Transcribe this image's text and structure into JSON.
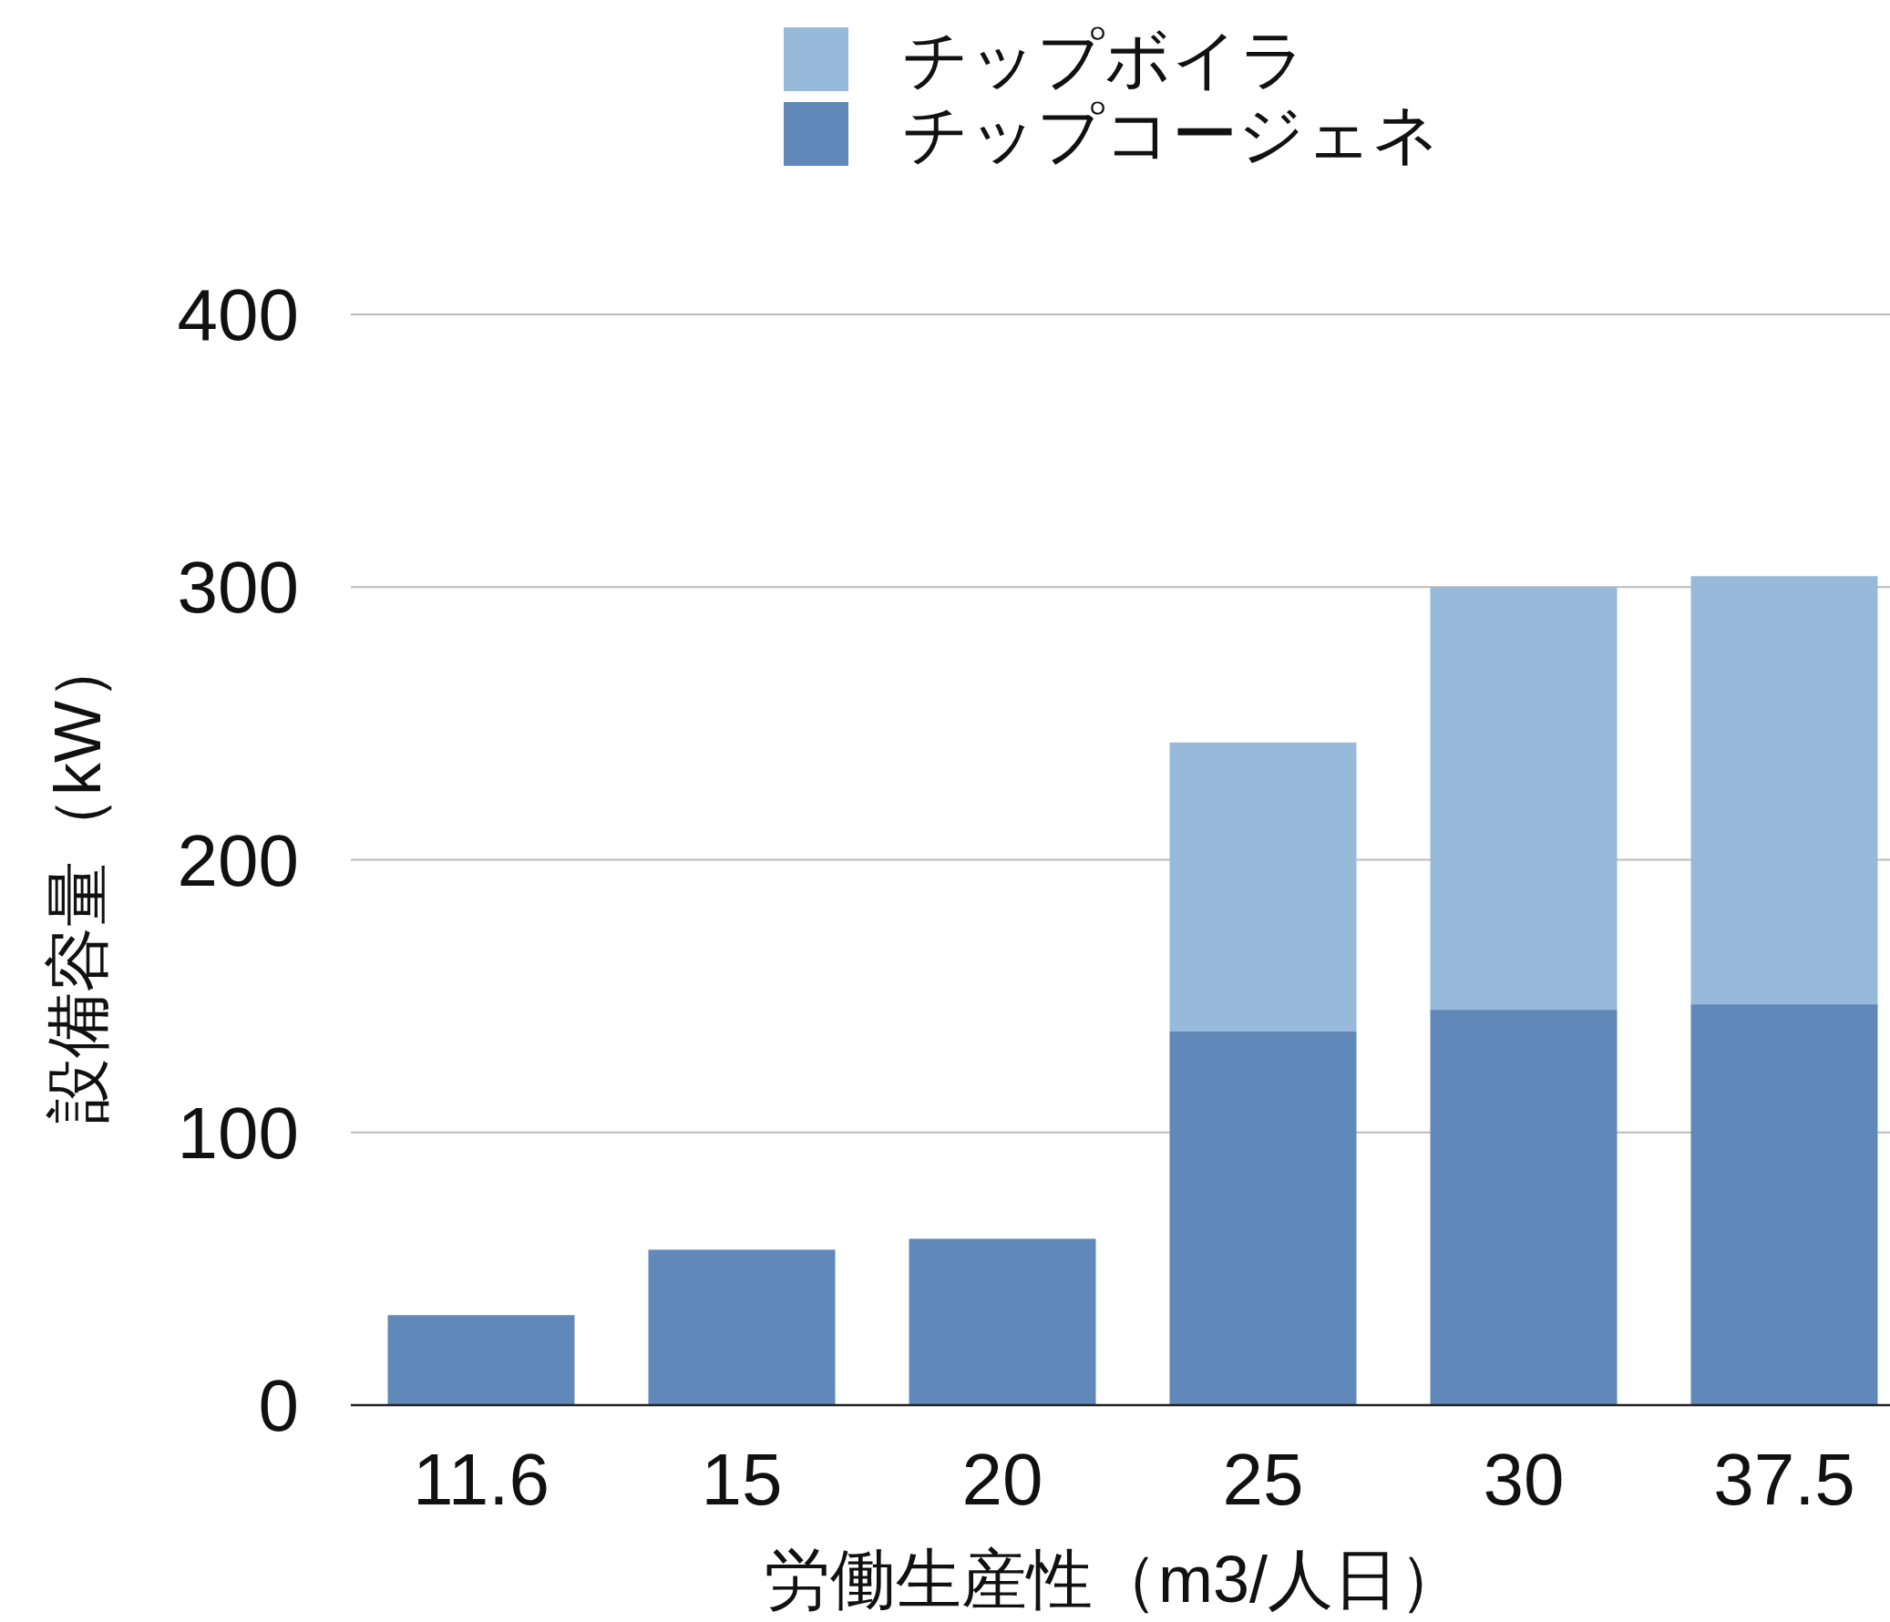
{
  "chart_data": {
    "type": "bar",
    "stacked": true,
    "xlabel": "労働生産性（m3/人日）",
    "ylabel": "設備容量（kW）",
    "categories": [
      "11.6",
      "15",
      "20",
      "25",
      "30",
      "37.5"
    ],
    "series": [
      {
        "name": "チップコージェネ",
        "color": "#6088b8",
        "values": [
          33,
          57,
          61,
          137,
          145,
          147
        ]
      },
      {
        "name": "チップボイラ",
        "color": "#97b9da",
        "values": [
          null,
          null,
          null,
          106,
          155,
          157
        ]
      }
    ],
    "ylim": [
      0,
      400
    ],
    "yticks": [
      0,
      100,
      200,
      300,
      400
    ],
    "grid": "y",
    "legend": "top"
  }
}
